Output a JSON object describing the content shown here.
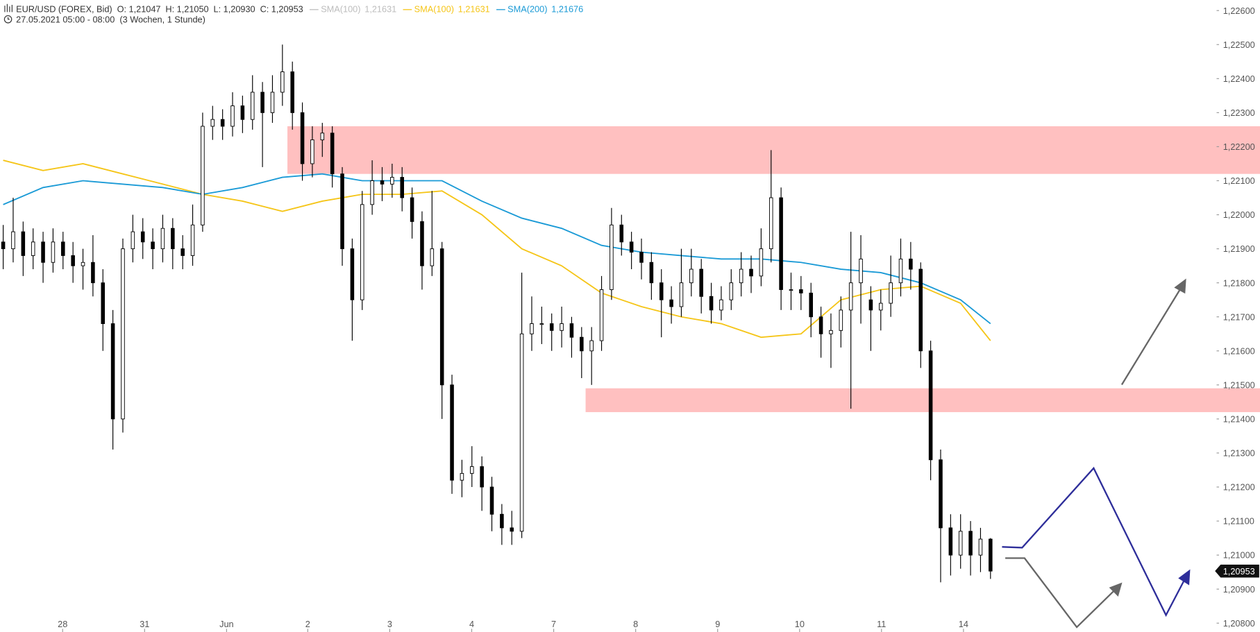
{
  "chart_data": {
    "type": "candlestick",
    "title": "EUR/USD (FOREX, Bid)",
    "ohlc_header": [
      {
        "label": "O:",
        "value": "1,21047"
      },
      {
        "label": "H:",
        "value": "1,21050"
      },
      {
        "label": "L:",
        "value": "1,20930"
      },
      {
        "label": "C:",
        "value": "1,20953"
      }
    ],
    "subtitle": "27.05.2021 05:00 - 08:00  (3 Wochen, 1 Stunde)",
    "candles": {
      "open": [
        1.2192,
        1.219,
        1.2195,
        1.2188,
        1.2192,
        1.2186,
        1.2192,
        1.2188,
        1.2185,
        1.2186,
        1.218,
        1.2168,
        1.214,
        1.219,
        1.2195,
        1.2192,
        1.219,
        1.2196,
        1.219,
        1.2188,
        1.2197,
        1.2226,
        1.2228,
        1.2226,
        1.2232,
        1.2228,
        1.2236,
        1.223,
        1.2236,
        1.2242,
        1.223,
        1.2215,
        1.2222,
        1.2224,
        1.2212,
        1.219,
        1.2175,
        1.2203,
        1.221,
        1.2209,
        1.2211,
        1.2205,
        1.2198,
        1.2185,
        1.219,
        1.215,
        1.2122,
        1.2124,
        1.2126,
        1.212,
        1.2112,
        1.2108,
        1.2107,
        1.2165,
        1.2168,
        1.2168,
        1.2166,
        1.2168,
        1.2164,
        1.216,
        1.2163,
        1.2178,
        1.2197,
        1.2192,
        1.2189,
        1.2186,
        1.218,
        1.2175,
        1.2173,
        1.218,
        1.2184,
        1.2176,
        1.2172,
        1.2175,
        1.218,
        1.2184,
        1.2182,
        1.219,
        1.2205,
        1.2178,
        1.2178,
        1.2177,
        1.217,
        1.2165,
        1.2166,
        1.2172,
        1.218,
        1.2175,
        1.2172,
        1.2174,
        1.218,
        1.2187,
        1.2184,
        1.216,
        1.2128,
        1.2108,
        1.21,
        1.2107,
        1.21,
        1.21047
      ],
      "high": [
        1.2197,
        1.2205,
        1.2198,
        1.2196,
        1.2195,
        1.2196,
        1.2195,
        1.2192,
        1.219,
        1.2194,
        1.2184,
        1.2172,
        1.2193,
        1.22,
        1.2199,
        1.2196,
        1.22,
        1.2199,
        1.2194,
        1.2203,
        1.223,
        1.2232,
        1.2231,
        1.2236,
        1.2235,
        1.2241,
        1.2239,
        1.2241,
        1.225,
        1.2245,
        1.2233,
        1.2226,
        1.2227,
        1.2226,
        1.2214,
        1.2193,
        1.2207,
        1.2216,
        1.2214,
        1.2215,
        1.2214,
        1.2208,
        1.2201,
        1.2207,
        1.2192,
        1.2153,
        1.2128,
        1.2132,
        1.2129,
        1.2123,
        1.2115,
        1.2113,
        1.2183,
        1.2176,
        1.2173,
        1.2171,
        1.2173,
        1.217,
        1.2167,
        1.2167,
        1.2182,
        1.2202,
        1.22,
        1.2195,
        1.2193,
        1.2189,
        1.2184,
        1.2179,
        1.219,
        1.219,
        1.2187,
        1.218,
        1.2179,
        1.2184,
        1.2189,
        1.2188,
        1.2196,
        1.2219,
        1.2208,
        1.2183,
        1.2182,
        1.218,
        1.2173,
        1.2171,
        1.2176,
        1.2195,
        1.2194,
        1.2179,
        1.2178,
        1.2188,
        1.2193,
        1.2192,
        1.2186,
        1.2163,
        1.2131,
        1.2112,
        1.2112,
        1.211,
        1.2108,
        1.2105
      ],
      "low": [
        1.2184,
        1.2186,
        1.2182,
        1.2184,
        1.218,
        1.2183,
        1.2184,
        1.218,
        1.2178,
        1.2176,
        1.216,
        1.2131,
        1.2136,
        1.2186,
        1.2187,
        1.2184,
        1.2186,
        1.2184,
        1.2184,
        1.2185,
        1.2195,
        1.2222,
        1.2222,
        1.2223,
        1.2224,
        1.2225,
        1.2214,
        1.2227,
        1.2232,
        1.2225,
        1.221,
        1.2211,
        1.2217,
        1.2208,
        1.2185,
        1.2163,
        1.2172,
        1.22,
        1.2204,
        1.2205,
        1.2201,
        1.2193,
        1.2178,
        1.2182,
        1.214,
        1.2118,
        1.2117,
        1.212,
        1.2113,
        1.2107,
        1.2103,
        1.2103,
        1.2105,
        1.216,
        1.2162,
        1.216,
        1.2161,
        1.2158,
        1.2152,
        1.215,
        1.216,
        1.2175,
        1.2188,
        1.2184,
        1.2181,
        1.2175,
        1.2164,
        1.2168,
        1.217,
        1.2176,
        1.2171,
        1.2168,
        1.2169,
        1.2172,
        1.2176,
        1.2177,
        1.2179,
        1.2186,
        1.2172,
        1.2172,
        1.2172,
        1.2164,
        1.2158,
        1.2155,
        1.2161,
        1.2143,
        1.2168,
        1.216,
        1.2166,
        1.217,
        1.2176,
        1.2178,
        1.2155,
        1.2122,
        1.2092,
        1.2094,
        1.2096,
        1.2094,
        1.2095,
        1.2093
      ],
      "close": [
        1.219,
        1.2195,
        1.2188,
        1.2192,
        1.2186,
        1.2192,
        1.2188,
        1.2185,
        1.2186,
        1.218,
        1.2168,
        1.214,
        1.219,
        1.2195,
        1.2192,
        1.219,
        1.2196,
        1.219,
        1.2188,
        1.2197,
        1.2226,
        1.2228,
        1.2226,
        1.2232,
        1.2228,
        1.2236,
        1.223,
        1.2236,
        1.2242,
        1.223,
        1.2215,
        1.2222,
        1.2224,
        1.2212,
        1.219,
        1.2175,
        1.2203,
        1.221,
        1.2209,
        1.2211,
        1.2205,
        1.2198,
        1.2185,
        1.219,
        1.215,
        1.2122,
        1.2124,
        1.2126,
        1.212,
        1.2112,
        1.2108,
        1.2107,
        1.2165,
        1.2168,
        1.2168,
        1.2166,
        1.2168,
        1.2164,
        1.216,
        1.2163,
        1.2178,
        1.2197,
        1.2192,
        1.2189,
        1.2186,
        1.218,
        1.2175,
        1.2173,
        1.218,
        1.2184,
        1.2176,
        1.2172,
        1.2175,
        1.218,
        1.2184,
        1.2182,
        1.219,
        1.2205,
        1.2178,
        1.2178,
        1.2177,
        1.217,
        1.2165,
        1.2166,
        1.2172,
        1.218,
        1.2187,
        1.2172,
        1.2174,
        1.218,
        1.2187,
        1.2184,
        1.216,
        1.2128,
        1.2108,
        1.21,
        1.2107,
        1.21,
        1.21047,
        1.20953
      ]
    },
    "up_color": "#ffffff",
    "down_color": "#000000",
    "series": [
      {
        "name": "SMA(100)",
        "color": "#bdbdbd",
        "value_label": "1,21631"
      },
      {
        "name": "SMA(100)",
        "color": "#f5c518",
        "value_label": "1,21631",
        "x": [
          0,
          4,
          8,
          12,
          16,
          20,
          24,
          28,
          32,
          36,
          40,
          44,
          48,
          52,
          56,
          60,
          64,
          68,
          72,
          76,
          80,
          84,
          88,
          92,
          96,
          99
        ],
        "values": [
          1.2216,
          1.2213,
          1.2215,
          1.2212,
          1.2209,
          1.2206,
          1.2204,
          1.2201,
          1.2204,
          1.2206,
          1.2206,
          1.2207,
          1.22,
          1.219,
          1.2185,
          1.2177,
          1.2173,
          1.217,
          1.2168,
          1.2164,
          1.2165,
          1.2175,
          1.2178,
          1.2179,
          1.2174,
          1.2163
        ]
      },
      {
        "name": "SMA(200)",
        "color": "#1a9ad6",
        "value_label": "1,21676",
        "x": [
          0,
          4,
          8,
          12,
          16,
          20,
          24,
          28,
          32,
          36,
          40,
          44,
          48,
          52,
          56,
          60,
          64,
          68,
          72,
          76,
          80,
          84,
          88,
          92,
          96,
          99
        ],
        "values": [
          1.2203,
          1.2208,
          1.221,
          1.2209,
          1.2208,
          1.2206,
          1.2208,
          1.2211,
          1.2212,
          1.221,
          1.221,
          1.221,
          1.2204,
          1.2199,
          1.2196,
          1.2191,
          1.2189,
          1.2188,
          1.2187,
          1.2187,
          1.2186,
          1.2184,
          1.2183,
          1.218,
          1.2175,
          1.2168
        ]
      }
    ],
    "zones": [
      {
        "from": 1.2212,
        "to": 1.2226,
        "x_start": 28.5,
        "color": "#ffc0c0"
      },
      {
        "from": 1.2142,
        "to": 1.2149,
        "x_start": 58.4,
        "color": "#ffc0c0"
      }
    ],
    "last_price": {
      "value": 1.20953,
      "label": "1,20953"
    },
    "xlim": [
      -0.32,
      121.35
    ],
    "xticks": [
      {
        "value": 5.96,
        "label": "28"
      },
      {
        "value": 14.18,
        "label": "31"
      },
      {
        "value": 22.4,
        "label": "Jun"
      },
      {
        "value": 30.54,
        "label": "2"
      },
      {
        "value": 38.76,
        "label": "3"
      },
      {
        "value": 46.98,
        "label": "4"
      },
      {
        "value": 55.2,
        "label": "7"
      },
      {
        "value": 63.42,
        "label": "8"
      },
      {
        "value": 71.64,
        "label": "9"
      },
      {
        "value": 79.86,
        "label": "10"
      },
      {
        "value": 88.07,
        "label": "11"
      },
      {
        "value": 96.29,
        "label": "14"
      }
    ],
    "ylim": [
      1.20774,
      1.22631
    ],
    "yticks": [
      {
        "value": 1.208,
        "label": "1,20800"
      },
      {
        "value": 1.209,
        "label": "1,20900"
      },
      {
        "value": 1.21,
        "label": "1,21000"
      },
      {
        "value": 1.211,
        "label": "1,21100"
      },
      {
        "value": 1.212,
        "label": "1,21200"
      },
      {
        "value": 1.213,
        "label": "1,21300"
      },
      {
        "value": 1.214,
        "label": "1,21400"
      },
      {
        "value": 1.215,
        "label": "1,21500"
      },
      {
        "value": 1.216,
        "label": "1,21600"
      },
      {
        "value": 1.217,
        "label": "1,21700"
      },
      {
        "value": 1.218,
        "label": "1,21800"
      },
      {
        "value": 1.219,
        "label": "1,21900"
      },
      {
        "value": 1.22,
        "label": "1,22000"
      },
      {
        "value": 1.221,
        "label": "1,22100"
      },
      {
        "value": 1.222,
        "label": "1,22200"
      },
      {
        "value": 1.223,
        "label": "1,22300"
      },
      {
        "value": 1.224,
        "label": "1,22400"
      },
      {
        "value": 1.225,
        "label": "1,22500"
      },
      {
        "value": 1.226,
        "label": "1,22600"
      }
    ],
    "grid": false
  }
}
